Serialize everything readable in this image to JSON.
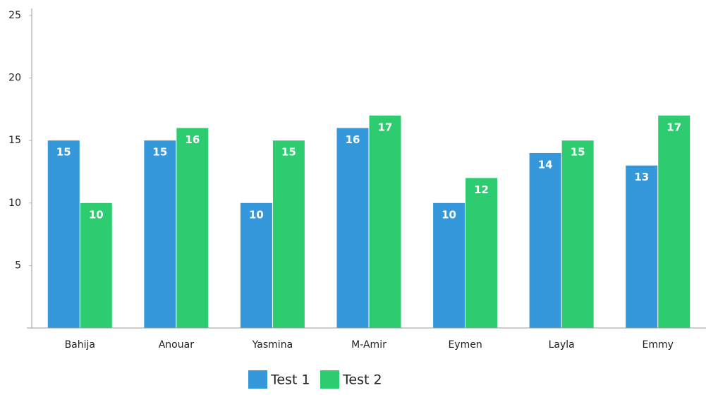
{
  "chart_data": {
    "type": "bar",
    "categories": [
      "Bahija",
      "Anouar",
      "Yasmina",
      "M-Amir",
      "Eymen",
      "Layla",
      "Emmy"
    ],
    "series": [
      {
        "name": "Test 1",
        "color": "#3498db",
        "values": [
          15,
          15,
          10,
          16,
          10,
          14,
          13
        ]
      },
      {
        "name": "Test 2",
        "color": "#2ecc71",
        "values": [
          10,
          16,
          15,
          17,
          12,
          15,
          17
        ]
      }
    ],
    "ylim": [
      0,
      25
    ],
    "yticks": [
      5,
      10,
      15,
      20,
      25
    ],
    "grid": false,
    "legend": "bottom"
  }
}
